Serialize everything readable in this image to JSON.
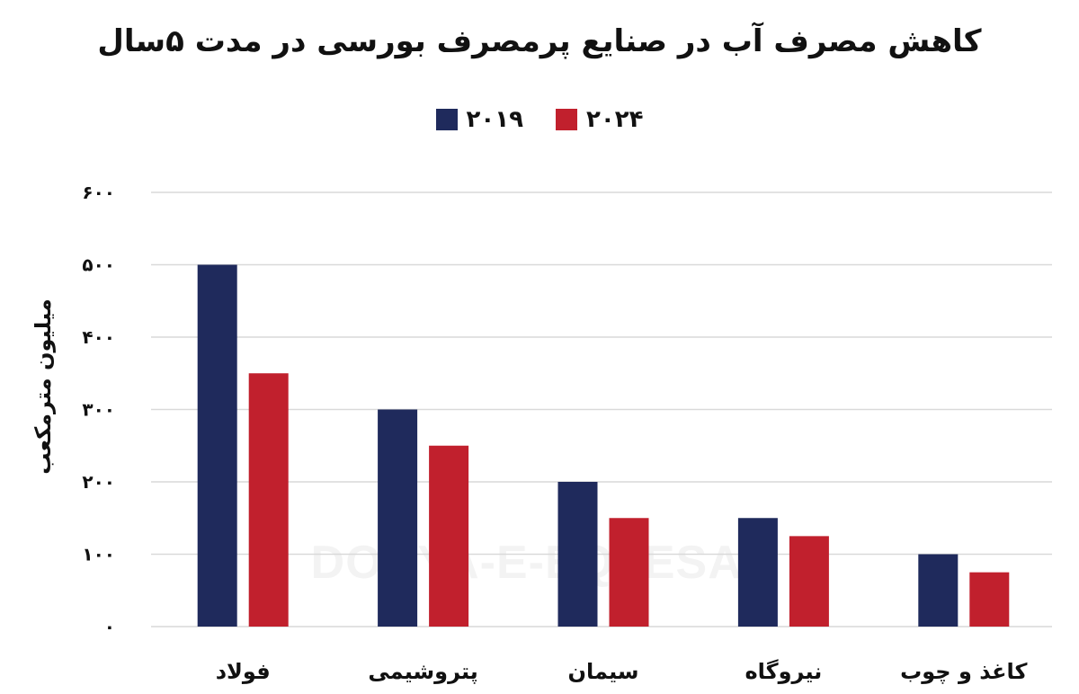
{
  "chart_data": {
    "type": "bar",
    "title": "کاهش مصرف آب در صنایع پرمصرف بورسی در مدت ۵سال",
    "ylabel": "میلیون مترمکعب",
    "xlabel": "",
    "categories": [
      "فولاد",
      "پتروشیمی",
      "سیمان",
      "نیروگاه",
      "کاغذ و چوب"
    ],
    "series": [
      {
        "name": "۲۰۱۹",
        "color": "#1f2a5c",
        "values": [
          500,
          300,
          200,
          150,
          100
        ]
      },
      {
        "name": "۲۰۲۴",
        "color": "#c1202d",
        "values": [
          350,
          250,
          150,
          125,
          75
        ]
      }
    ],
    "ylim": [
      0,
      600
    ],
    "yticks": [
      0,
      100,
      200,
      300,
      400,
      500,
      600
    ],
    "ytick_labels": [
      "۰",
      "۱۰۰",
      "۲۰۰",
      "۳۰۰",
      "۴۰۰",
      "۵۰۰",
      "۶۰۰"
    ],
    "grid": true,
    "legend_position": "top-center",
    "gridline_color": "#d9d9d9"
  },
  "watermark": "DONYA-E-EQTESAD"
}
